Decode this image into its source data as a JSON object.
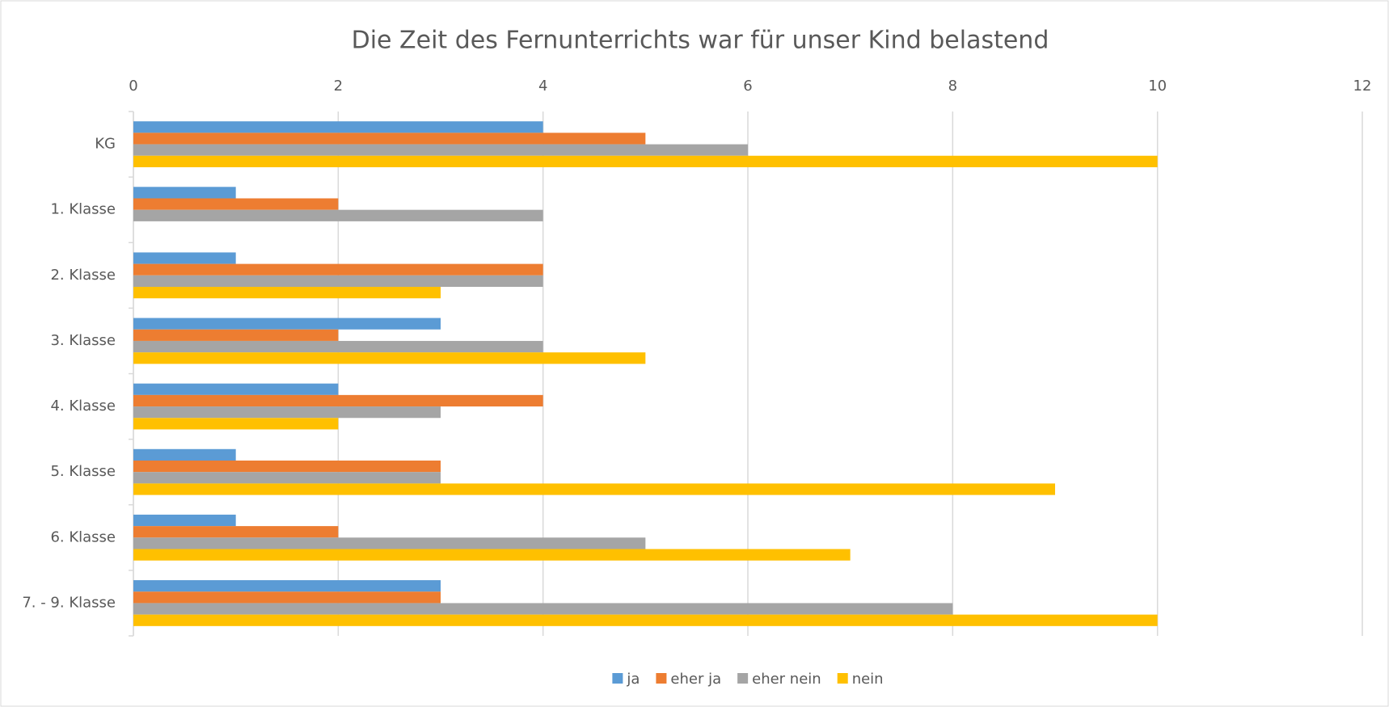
{
  "chart_data": {
    "type": "bar",
    "orientation": "horizontal",
    "title": "Die Zeit des Fernunterrichts war für unser Kind belastend",
    "categories": [
      "KG",
      "1. Klasse",
      "2. Klasse",
      "3. Klasse",
      "4. Klasse",
      "5. Klasse",
      "6. Klasse",
      "7. - 9. Klasse"
    ],
    "series": [
      {
        "name": "ja",
        "color": "#5b9bd5",
        "values": [
          4,
          1,
          1,
          3,
          2,
          1,
          1,
          3
        ]
      },
      {
        "name": "eher ja",
        "color": "#ed7d31",
        "values": [
          5,
          2,
          4,
          2,
          4,
          3,
          2,
          3
        ]
      },
      {
        "name": "eher nein",
        "color": "#a5a5a5",
        "values": [
          6,
          4,
          4,
          4,
          3,
          3,
          5,
          8
        ]
      },
      {
        "name": "nein",
        "color": "#ffc000",
        "values": [
          10,
          0,
          3,
          5,
          2,
          9,
          7,
          10
        ]
      }
    ],
    "xlim": [
      0,
      12
    ],
    "xticks": [
      0,
      2,
      4,
      6,
      8,
      10,
      12
    ],
    "grid": true,
    "legend": "bottom"
  }
}
